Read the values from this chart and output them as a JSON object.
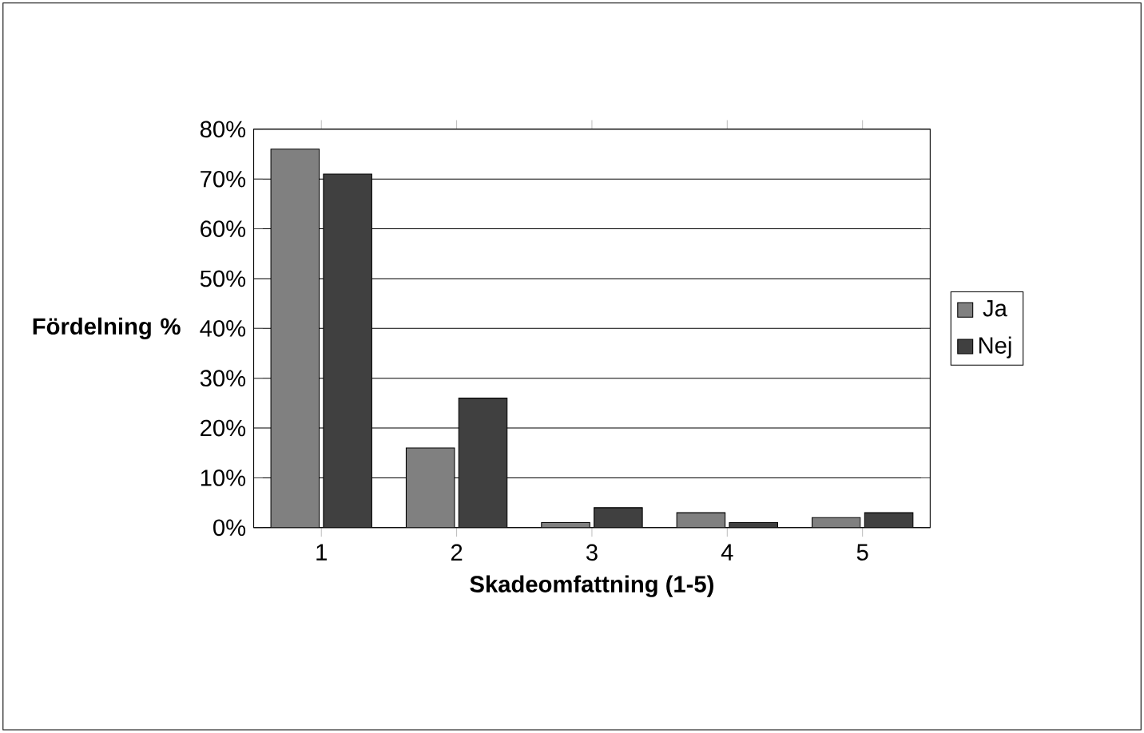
{
  "chart_data": {
    "type": "bar",
    "xlabel": "Skadeomfattning (1-5)",
    "ylabel": "Fördelning %",
    "categories": [
      "1",
      "2",
      "3",
      "4",
      "5"
    ],
    "series": [
      {
        "name": "Ja",
        "color": "#808080",
        "values": [
          76,
          16,
          1,
          3,
          2
        ]
      },
      {
        "name": "Nej",
        "color": "#404040",
        "values": [
          71,
          26,
          4,
          1,
          3
        ]
      }
    ],
    "ylim": [
      0,
      80
    ],
    "yticks": [
      {
        "value": 0,
        "label": "0%"
      },
      {
        "value": 10,
        "label": "10%"
      },
      {
        "value": 20,
        "label": "20%"
      },
      {
        "value": 30,
        "label": "30%"
      },
      {
        "value": 40,
        "label": "40%"
      },
      {
        "value": 50,
        "label": "50%"
      },
      {
        "value": 60,
        "label": "60%"
      },
      {
        "value": 70,
        "label": "70%"
      },
      {
        "value": 80,
        "label": "80%"
      }
    ],
    "grid": "y",
    "legend": "right"
  }
}
